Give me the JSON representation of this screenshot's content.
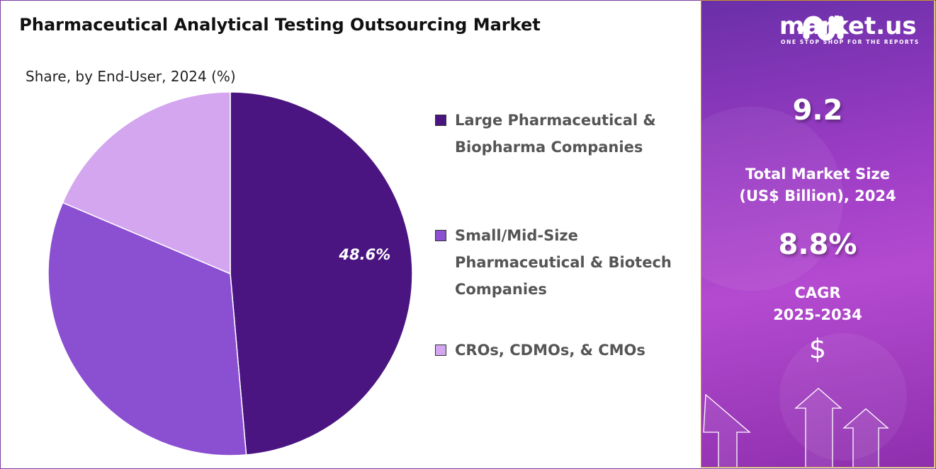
{
  "chart_data": {
    "type": "pie",
    "title": "Pharmaceutical Analytical Testing Outsourcing Market",
    "subtitle": "Share, by End-User, 2024 (%)",
    "categories": [
      "Large Pharmaceutical & Biopharma Companies",
      "Small/Mid-Size Pharmaceutical & Biotech Companies",
      "CROs, CDMOs, & CMOs"
    ],
    "values": [
      48.6,
      32.8,
      18.6
    ],
    "colors": [
      "#4a1580",
      "#8b4fd1",
      "#d3a6ef"
    ],
    "data_labels": [
      "48.6%",
      "",
      ""
    ],
    "legend_position": "right"
  },
  "legend": [
    {
      "line1": "Large Pharmaceutical &",
      "line2": "Biopharma Companies",
      "line3": ""
    },
    {
      "line1": "Small/Mid-Size",
      "line2": "Pharmaceutical & Biotech",
      "line3": "Companies"
    },
    {
      "line1": "CROs, CDMOs, & CMOs",
      "line2": "",
      "line3": ""
    }
  ],
  "panel": {
    "brand": "market.us",
    "tagline": "ONE STOP SHOP FOR THE REPORTS",
    "market_size": "9.2",
    "market_size_label_1": "Total Market Size",
    "market_size_label_2": "(US$ Billion), 2024",
    "cagr": "8.8%",
    "cagr_label_1": "CAGR",
    "cagr_label_2": "2025-2034",
    "currency_symbol": "$"
  }
}
